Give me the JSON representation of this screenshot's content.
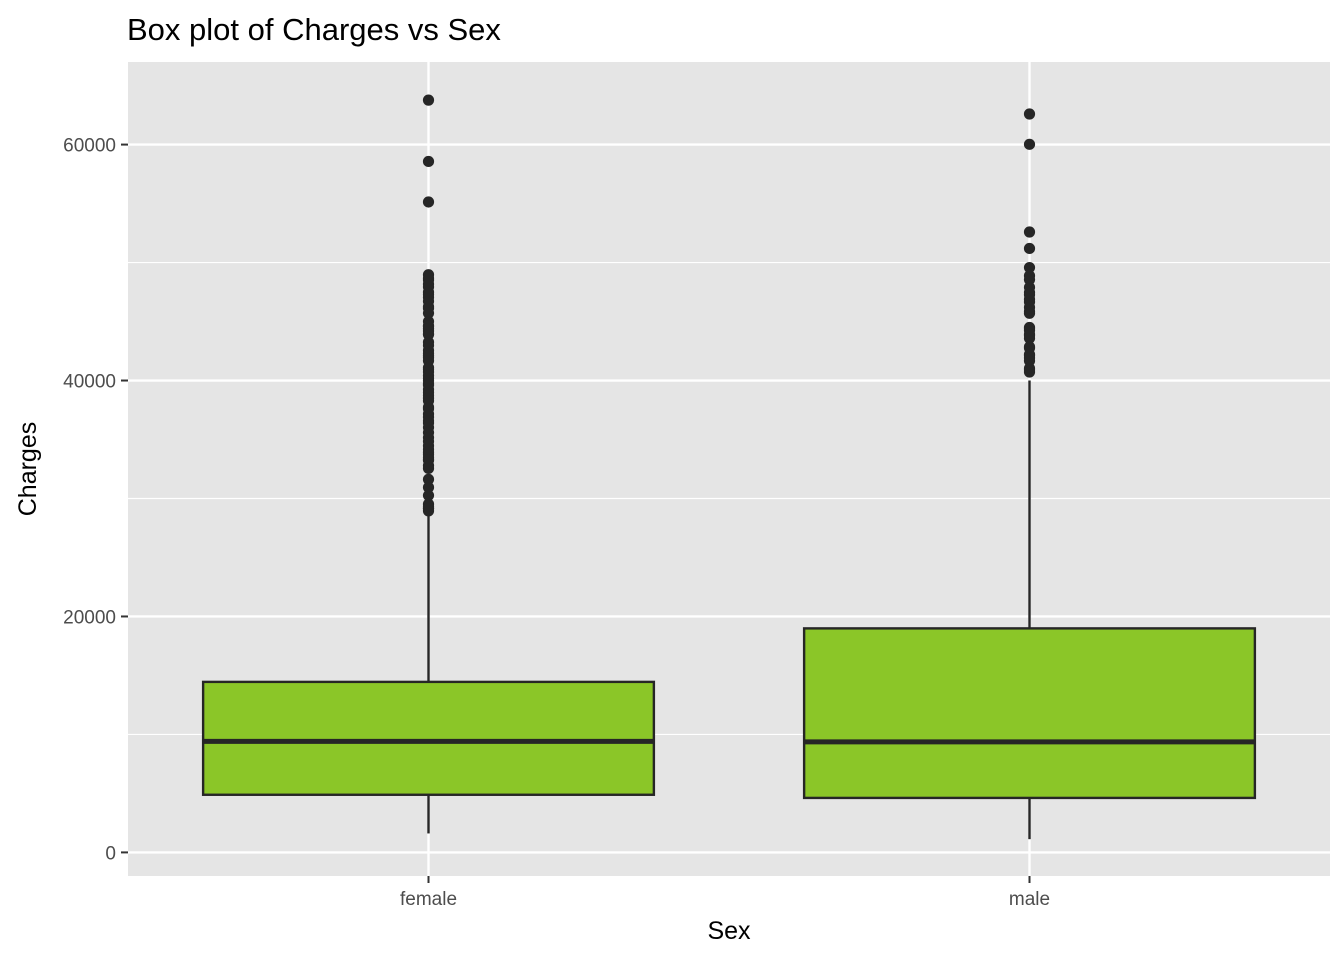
{
  "chart_data": {
    "type": "box",
    "title": "Box plot of Charges vs Sex",
    "xlabel": "Sex",
    "ylabel": "Charges",
    "categories": [
      "female",
      "male"
    ],
    "yticks": [
      0,
      20000,
      40000,
      60000
    ],
    "ylim": [
      -2000,
      67000
    ],
    "grid": true,
    "fill_color": "#8BC628",
    "line_color": "#262626",
    "panel_color": "#E5E5E5",
    "grid_color": "#FFFFFF",
    "boxes": [
      {
        "category": "female",
        "whisker_low": 1607,
        "q1": 4886,
        "median": 9413,
        "q3": 14454,
        "whisker_high": 28950,
        "outliers": [
          63770,
          58571,
          55135,
          48970,
          48673,
          48517,
          48173,
          47928,
          47496,
          47305,
          47055,
          46718,
          46255,
          46130,
          45710,
          45008,
          44641,
          44585,
          44400,
          44202,
          43943,
          43896,
          43254,
          42983,
          42560,
          42303,
          42112,
          41949,
          41676,
          41097,
          40941,
          40720,
          40419,
          40182,
          39983,
          39725,
          39611,
          39241,
          38998,
          38746,
          38511,
          38282,
          37742,
          37607,
          37165,
          36898,
          36580,
          36397,
          36021,
          35585,
          35160,
          34838,
          34472,
          34166,
          33907,
          33732,
          33471,
          33307,
          33242,
          32787,
          32548,
          31620,
          30942,
          30260,
          29523,
          29330,
          29186,
          29141,
          28950
        ]
      },
      {
        "category": "male",
        "whisker_low": 1122,
        "q1": 4619,
        "median": 9370,
        "q3": 18990,
        "whisker_high": 40000,
        "outliers": [
          62593,
          60021,
          52591,
          51195,
          49577,
          48885,
          48549,
          47896,
          47462,
          47269,
          46890,
          46661,
          46200,
          45864,
          45703,
          44501,
          44423,
          44260,
          43921,
          43813,
          43578,
          42857,
          42760,
          42211,
          42124,
          41919,
          41661,
          41034,
          40904,
          40720
        ]
      }
    ]
  }
}
